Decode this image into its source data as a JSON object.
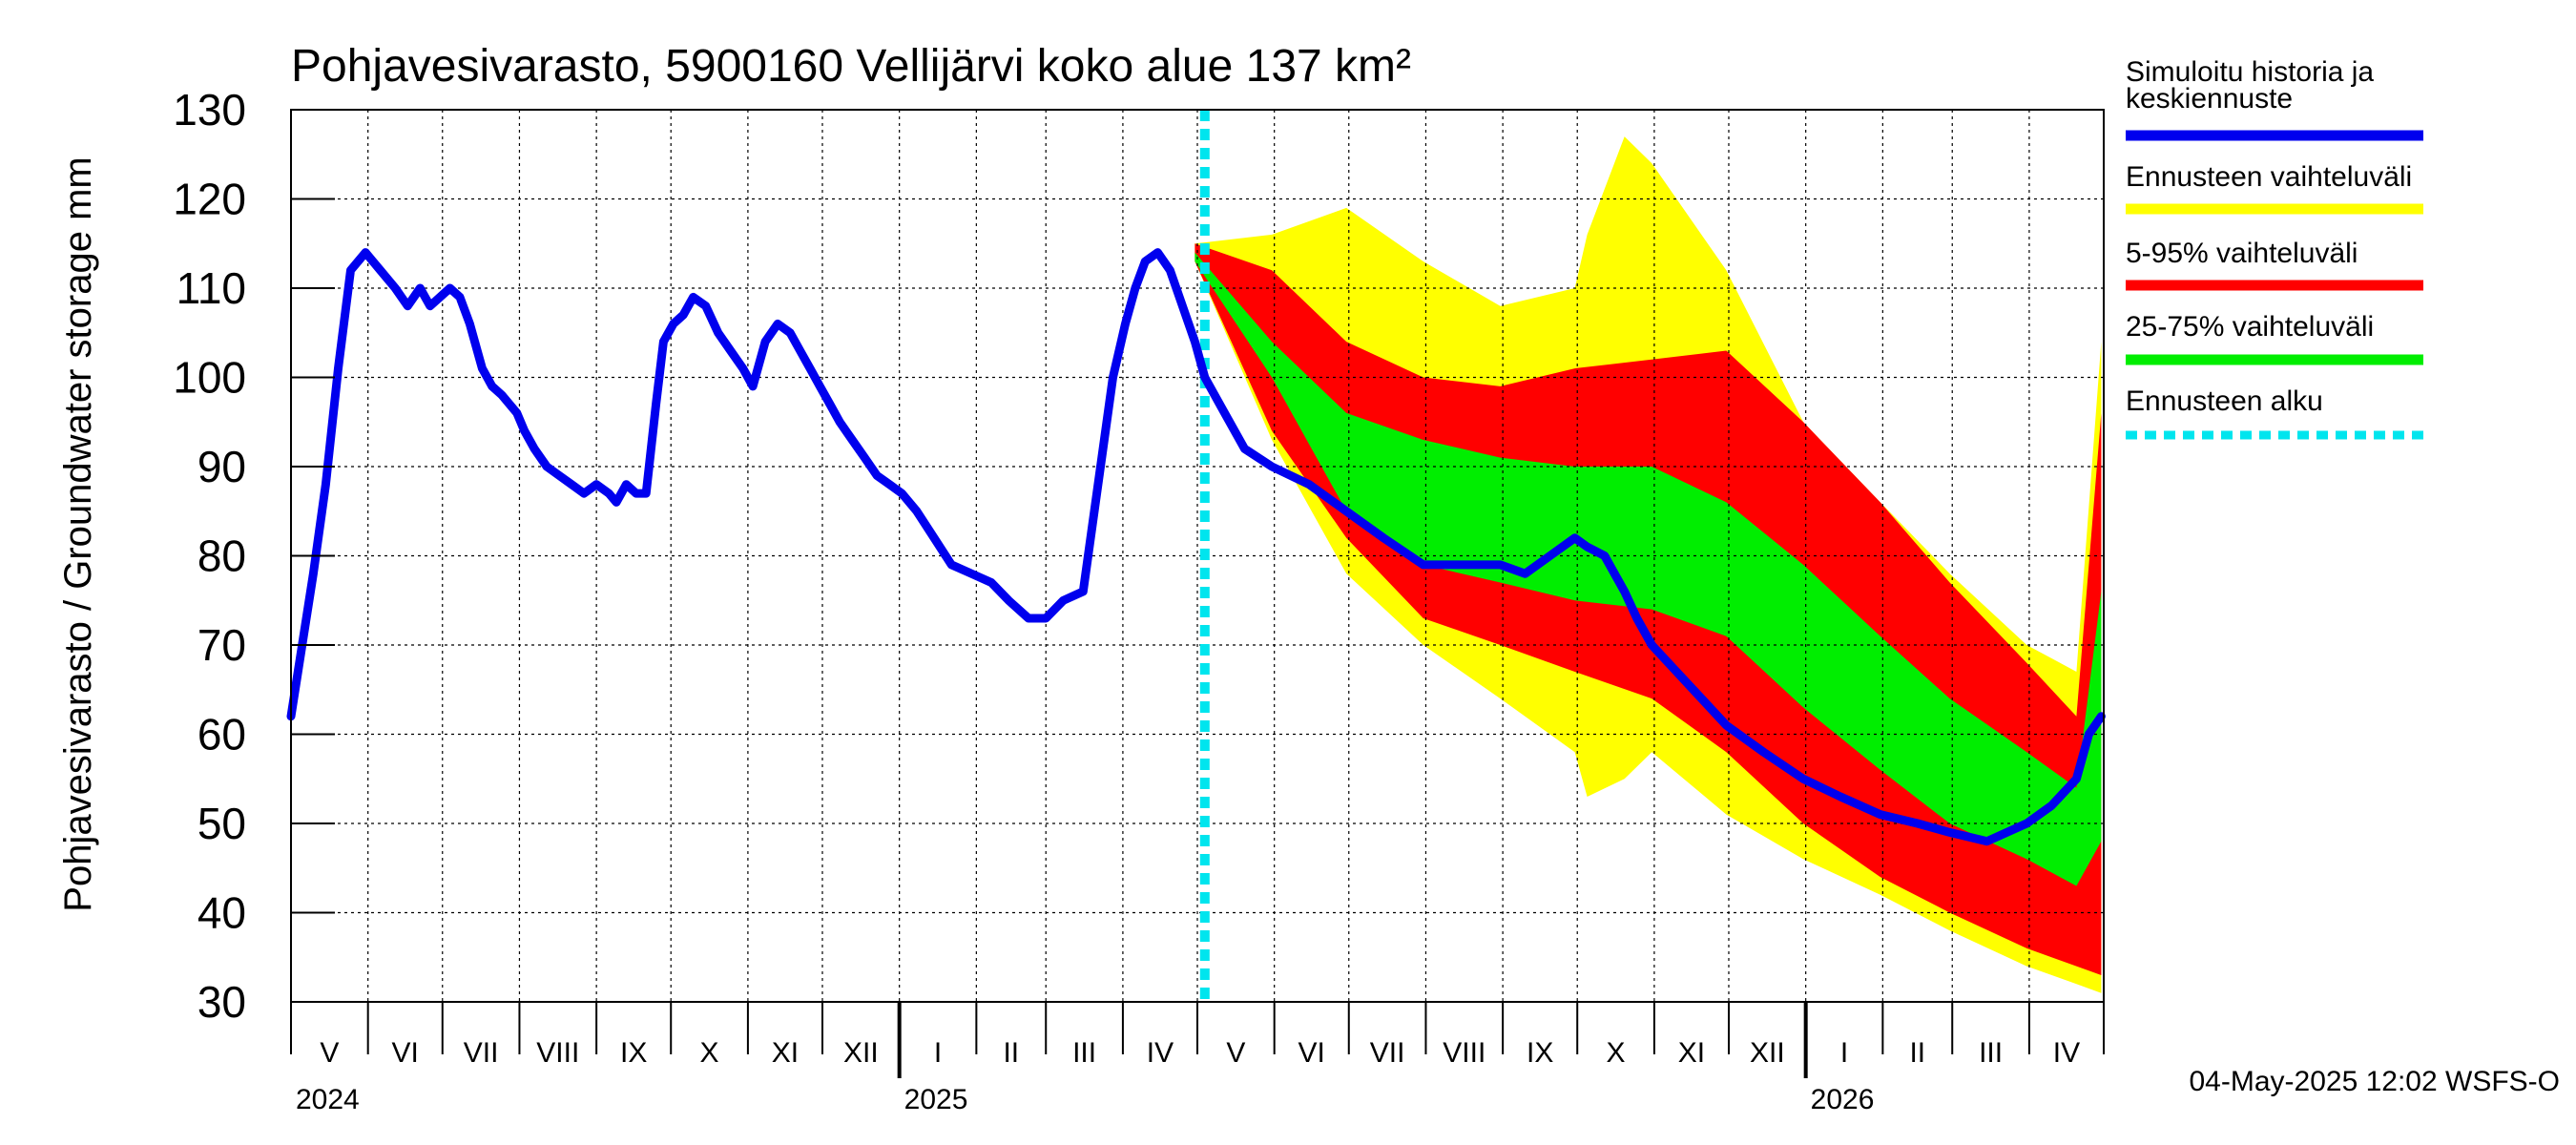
{
  "chart_data": {
    "type": "area",
    "title": "Pohjavesivarasto, 5900160 Vellijärvi koko alue 137 km²",
    "ylabel": "Pohjavesivarasto / Groundwater storage   mm",
    "ylim": [
      30,
      130
    ],
    "yticks": [
      "30",
      "40",
      "50",
      "60",
      "70",
      "80",
      "90",
      "100",
      "110",
      "120",
      "130"
    ],
    "grid": true,
    "months": [
      "V",
      "VI",
      "VII",
      "VIII",
      "IX",
      "X",
      "XI",
      "XII",
      "I",
      "II",
      "III",
      "IV",
      "V",
      "VI",
      "VII",
      "VIII",
      "IX",
      "X",
      "XI",
      "XII",
      "I",
      "II",
      "III",
      "IV"
    ],
    "years": [
      "2024",
      "2025",
      "2026"
    ],
    "forecast_start": "2025-05-04",
    "legend": [
      {
        "label": "Simuloitu historia ja keskiennuste",
        "color": "#0000ee",
        "style": "line"
      },
      {
        "label": "Ennusteen vaihteluväli",
        "color": "#ffff00",
        "style": "line"
      },
      {
        "label": "5-95% vaihteluväli",
        "color": "#ff0000",
        "style": "line"
      },
      {
        "label": "25-75% vaihteluväli",
        "color": "#00ee00",
        "style": "line"
      },
      {
        "label": "Ennusteen alku",
        "color": "#00e5ee",
        "style": "dashed"
      }
    ],
    "footer": "04-May-2025 12:02 WSFS-O",
    "series": [
      {
        "name": "Simuloitu historia ja keskiennuste",
        "color": "#0000ee",
        "x": [
          "2024-05-01",
          "2024-05-10",
          "2024-05-15",
          "2024-05-20",
          "2024-05-25",
          "2024-05-31",
          "2024-06-03",
          "2024-06-06",
          "2024-06-12",
          "2024-06-17",
          "2024-06-22",
          "2024-06-26",
          "2024-06-30",
          "2024-07-04",
          "2024-07-08",
          "2024-07-12",
          "2024-07-17",
          "2024-07-21",
          "2024-07-25",
          "2024-07-31",
          "2024-08-03",
          "2024-08-07",
          "2024-08-12",
          "2024-08-17",
          "2024-08-22",
          "2024-08-27",
          "2024-09-01",
          "2024-09-06",
          "2024-09-09",
          "2024-09-13",
          "2024-09-17",
          "2024-09-21",
          "2024-09-25",
          "2024-09-28",
          "2024-10-02",
          "2024-10-06",
          "2024-10-10",
          "2024-10-15",
          "2024-10-20",
          "2024-10-25",
          "2024-10-30",
          "2024-11-03",
          "2024-11-08",
          "2024-11-13",
          "2024-11-18",
          "2024-11-22",
          "2024-11-26",
          "2024-11-30",
          "2024-12-04",
          "2024-12-08",
          "2024-12-13",
          "2024-12-18",
          "2024-12-23",
          "2024-12-28",
          "2025-01-02",
          "2025-01-08",
          "2025-01-15",
          "2025-01-22",
          "2025-01-30",
          "2025-02-07",
          "2025-02-14",
          "2025-02-22",
          "2025-03-01",
          "2025-03-08",
          "2025-03-16",
          "2025-03-22",
          "2025-03-28",
          "2025-04-02",
          "2025-04-06",
          "2025-04-10",
          "2025-04-15",
          "2025-04-20",
          "2025-04-25",
          "2025-04-30",
          "2025-05-04",
          "2025-05-12",
          "2025-05-20",
          "2025-05-31",
          "2025-06-15",
          "2025-06-30",
          "2025-07-15",
          "2025-07-31",
          "2025-08-15",
          "2025-08-31",
          "2025-09-10",
          "2025-09-20",
          "2025-09-30",
          "2025-10-05",
          "2025-10-12",
          "2025-10-20",
          "2025-10-25",
          "2025-10-31",
          "2025-11-10",
          "2025-11-20",
          "2025-11-30",
          "2025-12-15",
          "2025-12-31",
          "2026-01-15",
          "2026-01-31",
          "2026-02-15",
          "2026-02-28",
          "2026-03-15",
          "2026-03-31",
          "2026-04-10",
          "2026-04-20",
          "2026-04-25",
          "2026-04-30"
        ],
        "y": [
          62,
          78,
          88,
          101,
          112,
          114,
          113,
          112,
          110,
          108,
          110,
          108,
          109,
          110,
          109,
          106,
          101,
          99,
          98,
          96,
          94,
          92,
          90,
          89,
          88,
          87,
          88,
          87,
          86,
          88,
          87,
          87,
          97,
          104,
          106,
          107,
          109,
          108,
          105,
          103,
          101,
          99,
          104,
          106,
          105,
          103,
          101,
          99,
          97,
          95,
          93,
          91,
          89,
          88,
          87,
          85,
          82,
          79,
          78,
          77,
          75,
          73,
          73,
          75,
          76,
          88,
          100,
          106,
          110,
          113,
          114,
          112,
          108,
          104,
          100,
          96,
          92,
          90,
          88,
          85,
          82,
          79,
          79,
          79,
          78,
          80,
          82,
          81,
          80,
          76,
          73,
          70,
          67,
          64,
          61,
          58,
          55,
          53,
          51,
          50,
          49,
          48,
          50,
          52,
          55,
          60,
          62
        ]
      },
      {
        "name": "Ennusteen vaihteluväli",
        "color": "#ffff00",
        "x": [
          "2025-04-30",
          "2025-05-31",
          "2025-06-30",
          "2025-07-31",
          "2025-08-31",
          "2025-09-30",
          "2025-10-05",
          "2025-10-20",
          "2025-10-31",
          "2025-11-30",
          "2025-12-31",
          "2026-01-31",
          "2026-02-28",
          "2026-03-31",
          "2026-04-20",
          "2026-04-30"
        ],
        "upper": [
          115,
          116,
          119,
          113,
          108,
          110,
          116,
          127,
          124,
          112,
          95,
          86,
          78,
          70,
          67,
          104
        ],
        "lower": [
          113,
          93,
          78,
          70,
          64,
          58,
          53,
          55,
          58,
          51,
          46,
          42,
          38,
          34,
          32,
          31
        ]
      },
      {
        "name": "5-95% vaihteluväli",
        "color": "#ff0000",
        "x": [
          "2025-04-30",
          "2025-05-31",
          "2025-06-30",
          "2025-07-31",
          "2025-08-31",
          "2025-09-30",
          "2025-10-31",
          "2025-11-30",
          "2025-12-31",
          "2026-01-31",
          "2026-02-28",
          "2026-03-31",
          "2026-04-20",
          "2026-04-30"
        ],
        "upper": [
          115,
          112,
          104,
          100,
          99,
          101,
          102,
          103,
          95,
          86,
          77,
          68,
          62,
          96
        ],
        "lower": [
          113,
          94,
          82,
          73,
          70,
          67,
          64,
          58,
          50,
          44,
          40,
          36,
          34,
          33
        ]
      },
      {
        "name": "25-75% vaihteluväli",
        "color": "#00ee00",
        "x": [
          "2025-04-30",
          "2025-05-31",
          "2025-06-30",
          "2025-07-31",
          "2025-08-31",
          "2025-09-30",
          "2025-10-31",
          "2025-11-30",
          "2025-12-31",
          "2026-01-31",
          "2026-02-28",
          "2026-03-31",
          "2026-04-20",
          "2026-04-30"
        ],
        "upper": [
          114,
          104,
          96,
          93,
          91,
          90,
          90,
          86,
          79,
          71,
          64,
          58,
          54,
          76
        ],
        "lower": [
          113,
          100,
          85,
          79,
          77,
          75,
          74,
          71,
          63,
          56,
          50,
          46,
          43,
          48
        ]
      }
    ]
  }
}
